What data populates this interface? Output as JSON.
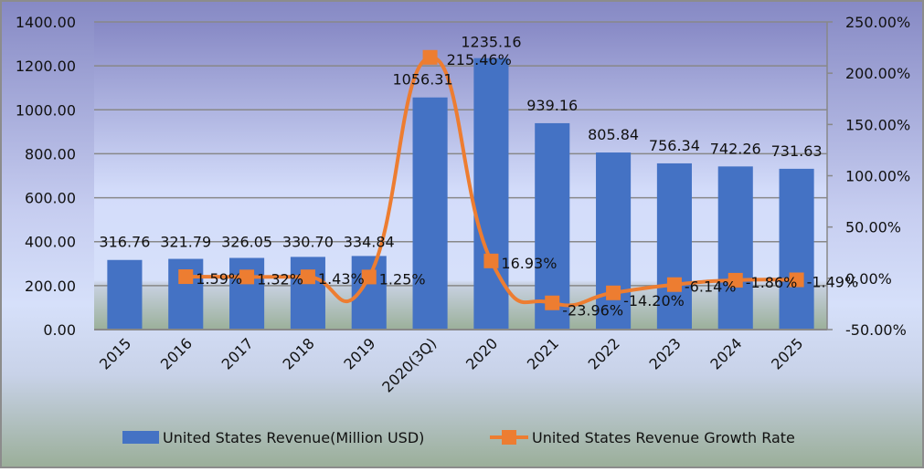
{
  "chart_data": {
    "type": "bar+line",
    "title": "",
    "categories": [
      "2015",
      "2016",
      "2017",
      "2018",
      "2019",
      "2020(3Q)",
      "2020",
      "2021",
      "2022",
      "2023",
      "2024",
      "2025"
    ],
    "series": [
      {
        "name": "United States Revenue(Million USD)",
        "type": "bar",
        "axis": "left",
        "color": "#4472C4",
        "values": [
          316.76,
          321.79,
          326.05,
          330.7,
          334.84,
          1056.31,
          1235.16,
          939.16,
          805.84,
          756.34,
          742.26,
          731.63
        ],
        "labels": [
          "316.76",
          "321.79",
          "326.05",
          "330.70",
          "334.84",
          "1056.31",
          "1235.16",
          "939.16",
          "805.84",
          "756.34",
          "742.26",
          "731.63"
        ]
      },
      {
        "name": "United States Revenue Growth Rate",
        "type": "line",
        "axis": "right",
        "color": "#ED7D31",
        "values": [
          null,
          1.59,
          1.32,
          1.43,
          1.25,
          215.46,
          16.93,
          -23.96,
          -14.2,
          -6.14,
          -1.86,
          -1.49
        ],
        "labels": [
          null,
          "1.59%",
          "1.32%",
          "1.43%",
          "1.25%",
          "215.46%",
          "16.93%",
          "-23.96%",
          "-14.20%",
          "-6.14%",
          "-1.86%",
          "-1.49%"
        ]
      }
    ],
    "left_axis": {
      "ylim": [
        0,
        1400
      ],
      "ticks": [
        "0.00",
        "200.00",
        "400.00",
        "600.00",
        "800.00",
        "1000.00",
        "1200.00",
        "1400.00"
      ]
    },
    "right_axis": {
      "ylim": [
        -50,
        250
      ],
      "ticks": [
        "-50.00%",
        "0.00%",
        "50.00%",
        "100.00%",
        "150.00%",
        "200.00%",
        "250.00%"
      ]
    },
    "xlabel": "",
    "ylabel": "",
    "grid": true,
    "legend": "bottom"
  }
}
